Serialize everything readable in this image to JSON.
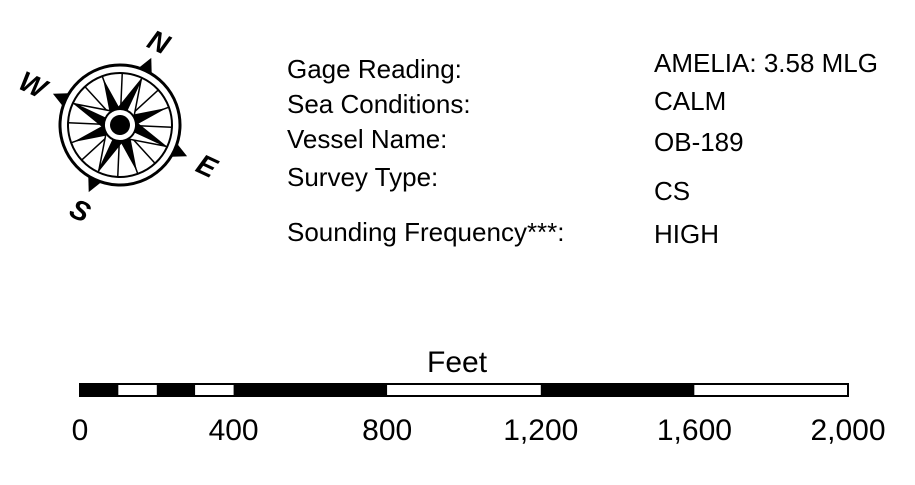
{
  "compass": {
    "north": "N",
    "south": "S",
    "east": "E",
    "west": "W"
  },
  "survey_info": [
    {
      "label": "Gage Reading:",
      "value": "AMELIA: 3.58 MLG"
    },
    {
      "label": "Sea Conditions:",
      "value": "CALM"
    },
    {
      "label": "Vessel Name:",
      "value": "OB-189"
    },
    {
      "label": "Survey Type:",
      "value": "CS"
    },
    {
      "label": "Sounding Frequency***:",
      "value": "HIGH"
    }
  ],
  "scale_bar": {
    "unit_label": "Feet",
    "ticks": [
      "0",
      "400",
      "800",
      "1,200",
      "1,600",
      "2,000"
    ],
    "max_value": 2000,
    "segments": [
      {
        "from": 0,
        "to": 100,
        "fill": "black"
      },
      {
        "from": 100,
        "to": 200,
        "fill": "white"
      },
      {
        "from": 200,
        "to": 300,
        "fill": "black"
      },
      {
        "from": 300,
        "to": 400,
        "fill": "white"
      },
      {
        "from": 400,
        "to": 800,
        "fill": "black"
      },
      {
        "from": 800,
        "to": 1200,
        "fill": "white"
      },
      {
        "from": 1200,
        "to": 1600,
        "fill": "black"
      },
      {
        "from": 1600,
        "to": 2000,
        "fill": "white"
      }
    ]
  }
}
